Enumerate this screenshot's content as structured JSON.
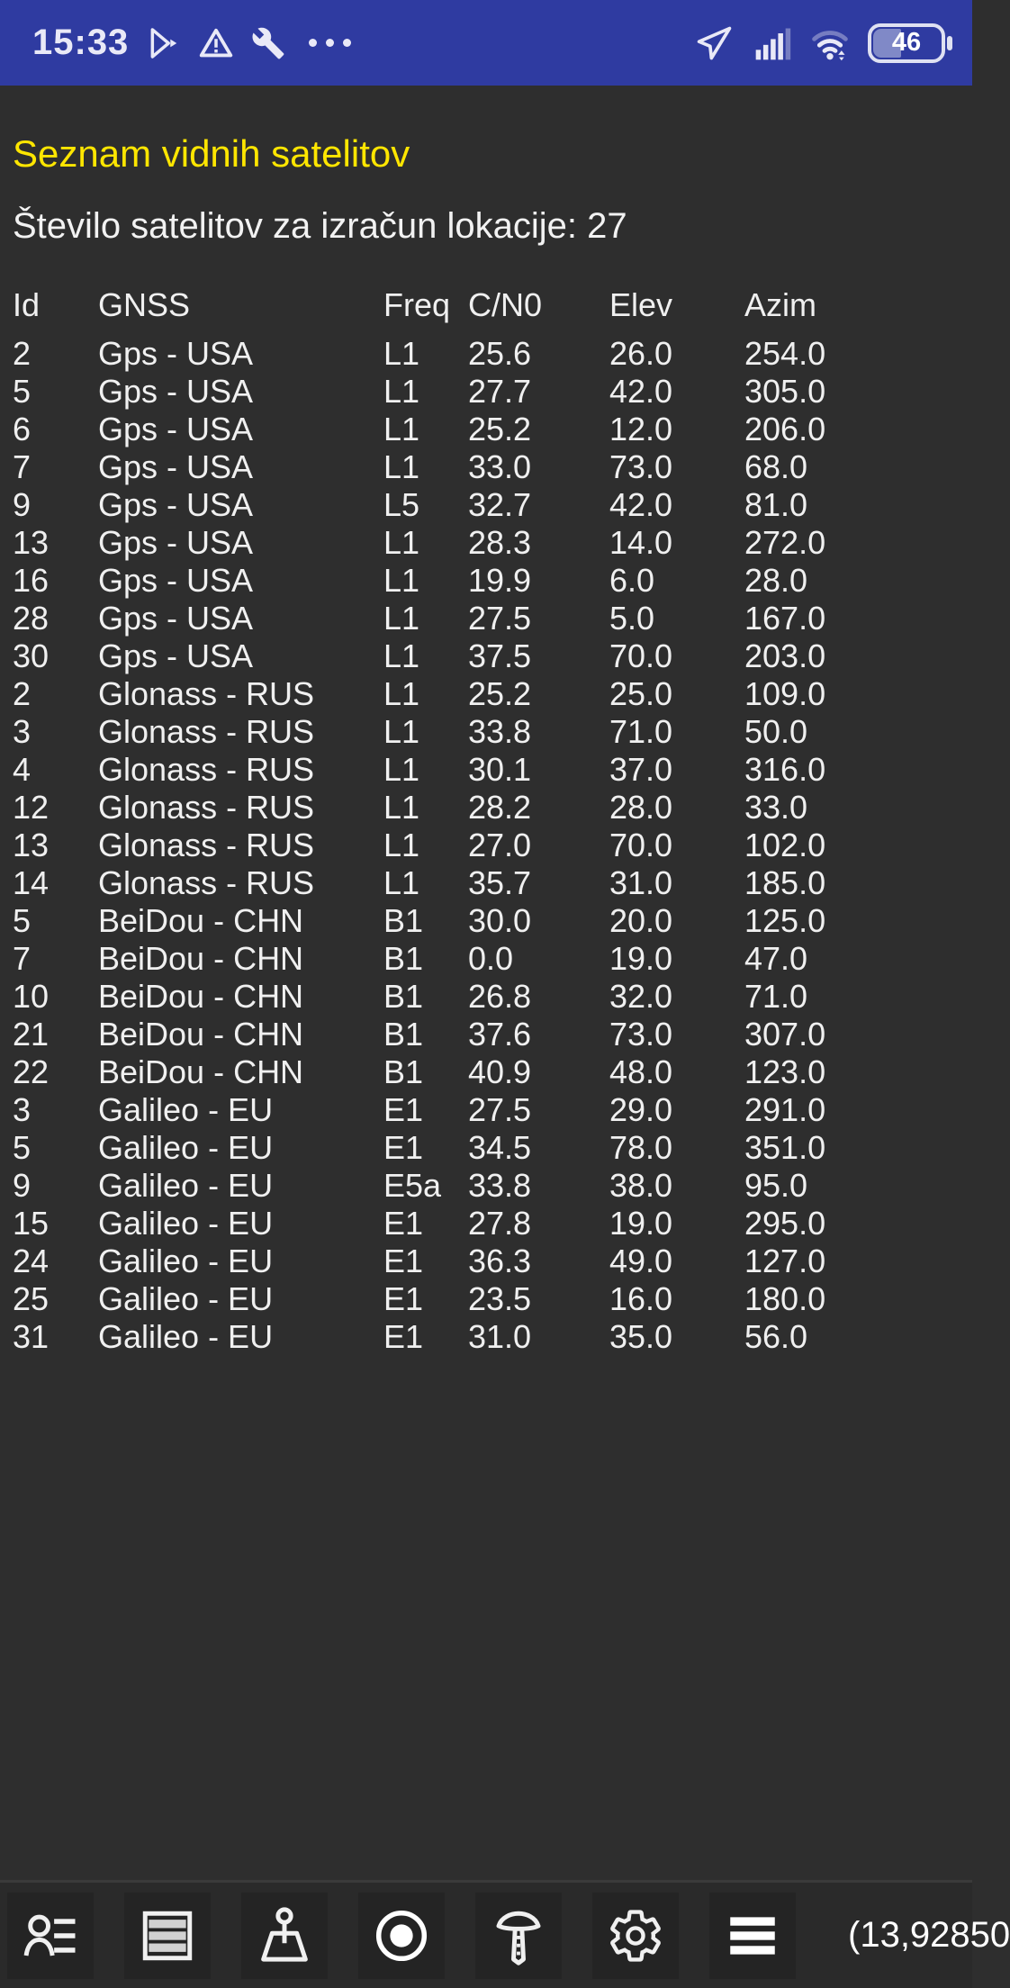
{
  "status_bar": {
    "time": "15:33",
    "left_icons": [
      "play-store-icon",
      "warning-icon",
      "wrench-icon",
      "more-notifications-dots"
    ],
    "right_icons": [
      "location-icon",
      "signal-icon",
      "wifi-icon",
      "battery-icon"
    ],
    "battery_percent": "46",
    "bar_color": "#2f3ba1",
    "icon_color": "#e9e9f7"
  },
  "header": {
    "title": "Seznam vidnih satelitov",
    "subtitle": "Število satelitov za izračun lokacije: 27",
    "title_color": "#ffe600",
    "satellite_count": "27"
  },
  "table": {
    "columns": [
      "Id",
      "GNSS",
      "Freq",
      "C/N0",
      "Elev",
      "Azim"
    ],
    "rows": [
      [
        "2",
        "Gps - USA",
        "L1",
        "25.6",
        "26.0",
        "254.0"
      ],
      [
        "5",
        "Gps - USA",
        "L1",
        "27.7",
        "42.0",
        "305.0"
      ],
      [
        "6",
        "Gps - USA",
        "L1",
        "25.2",
        "12.0",
        "206.0"
      ],
      [
        "7",
        "Gps - USA",
        "L1",
        "33.0",
        "73.0",
        "68.0"
      ],
      [
        "9",
        "Gps - USA",
        "L5",
        "32.7",
        "42.0",
        "81.0"
      ],
      [
        "13",
        "Gps - USA",
        "L1",
        "28.3",
        "14.0",
        "272.0"
      ],
      [
        "16",
        "Gps - USA",
        "L1",
        "19.9",
        "6.0",
        "28.0"
      ],
      [
        "28",
        "Gps - USA",
        "L1",
        "27.5",
        "5.0",
        "167.0"
      ],
      [
        "30",
        "Gps - USA",
        "L1",
        "37.5",
        "70.0",
        "203.0"
      ],
      [
        "2",
        "Glonass - RUS",
        "L1",
        "25.2",
        "25.0",
        "109.0"
      ],
      [
        "3",
        "Glonass - RUS",
        "L1",
        "33.8",
        "71.0",
        "50.0"
      ],
      [
        "4",
        "Glonass - RUS",
        "L1",
        "30.1",
        "37.0",
        "316.0"
      ],
      [
        "12",
        "Glonass - RUS",
        "L1",
        "28.2",
        "28.0",
        "33.0"
      ],
      [
        "13",
        "Glonass - RUS",
        "L1",
        "27.0",
        "70.0",
        "102.0"
      ],
      [
        "14",
        "Glonass - RUS",
        "L1",
        "35.7",
        "31.0",
        "185.0"
      ],
      [
        "5",
        "BeiDou - CHN",
        "B1",
        "30.0",
        "20.0",
        "125.0"
      ],
      [
        "7",
        "BeiDou - CHN",
        "B1",
        "0.0",
        "19.0",
        "47.0"
      ],
      [
        "10",
        "BeiDou - CHN",
        "B1",
        "26.8",
        "32.0",
        "71.0"
      ],
      [
        "21",
        "BeiDou - CHN",
        "B1",
        "37.6",
        "73.0",
        "307.0"
      ],
      [
        "22",
        "BeiDou - CHN",
        "B1",
        "40.9",
        "48.0",
        "123.0"
      ],
      [
        "3",
        "Galileo - EU",
        "E1",
        "27.5",
        "29.0",
        "291.0"
      ],
      [
        "5",
        "Galileo - EU",
        "E1",
        "34.5",
        "78.0",
        "351.0"
      ],
      [
        "9",
        "Galileo - EU",
        "E5a",
        "33.8",
        "38.0",
        "95.0"
      ],
      [
        "15",
        "Galileo - EU",
        "E1",
        "27.8",
        "19.0",
        "295.0"
      ],
      [
        "24",
        "Galileo - EU",
        "E1",
        "36.3",
        "49.0",
        "127.0"
      ],
      [
        "25",
        "Galileo - EU",
        "E1",
        "23.5",
        "16.0",
        "180.0"
      ],
      [
        "31",
        "Galileo - EU",
        "E1",
        "31.0",
        "35.0",
        "56.0"
      ]
    ]
  },
  "toolbar": {
    "icons": [
      "satellite-list-icon",
      "table-view-icon",
      "survey-marker-icon",
      "record-target-icon",
      "gnss-antenna-icon",
      "settings-gear-icon",
      "menu-icon"
    ],
    "coords_text": "(13,92850",
    "background": "#2a2a2a"
  }
}
